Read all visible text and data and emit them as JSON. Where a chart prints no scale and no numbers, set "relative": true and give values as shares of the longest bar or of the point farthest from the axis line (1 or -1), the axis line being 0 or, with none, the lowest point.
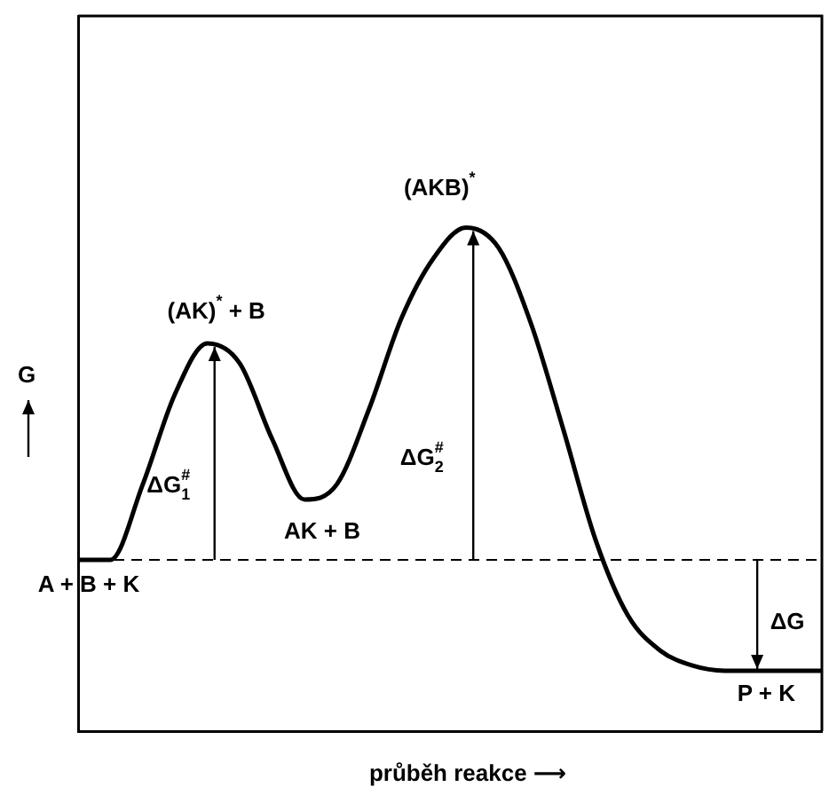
{
  "chart_data": {
    "type": "line",
    "relative": true,
    "marker": "none",
    "line_style": "solid",
    "xlabel": "průběh reakce ⟶",
    "ylabel": "G",
    "categories": [
      null,
      null,
      null,
      null,
      null,
      null,
      null,
      null,
      null,
      null,
      null,
      null,
      null,
      null,
      null,
      null,
      null,
      null,
      null,
      null,
      null,
      null,
      null,
      null
    ],
    "series": [
      {
        "color": "#000000",
        "values": [
          0.34,
          0.34,
          0.49,
          0.67,
          0.77,
          0.73,
          0.58,
          0.46,
          0.49,
          0.64,
          0.82,
          0.94,
          1,
          0.96,
          0.81,
          0.6,
          0.38,
          0.23,
          0.16,
          0.13,
          0.12,
          0.12,
          0.12,
          0.12
        ]
      }
    ],
    "ref_lines": [
      {
        "axis": "y",
        "value": 0.34,
        "color": "#000000",
        "line_style": "dashed"
      }
    ],
    "annotations": [
      "(AK)$^{*}$ + B",
      "AK + B",
      "(AKB)$^{*}$",
      "A + B + K",
      "P + K",
      "ΔG$_{1}$$^{#}$",
      "ΔG$_{2}$$^{#}$",
      "ΔG"
    ]
  }
}
